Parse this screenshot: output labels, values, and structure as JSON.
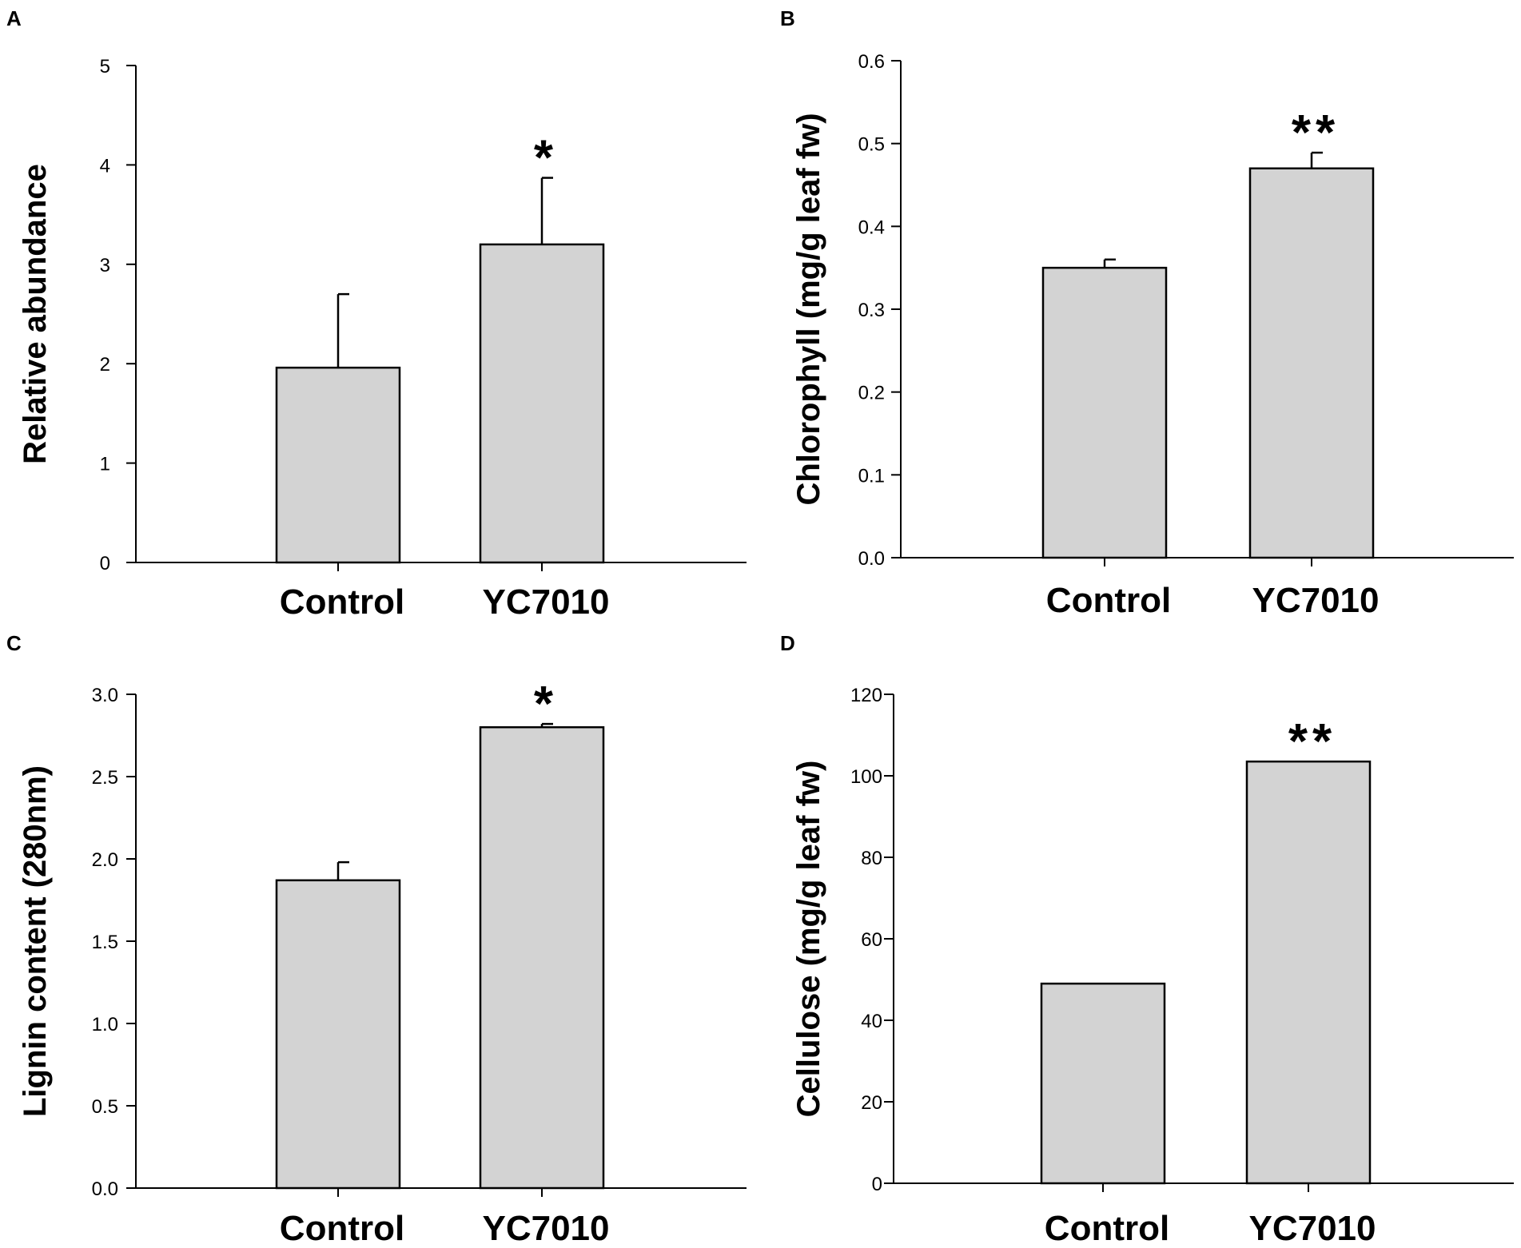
{
  "bar_color": "#d3d3d3",
  "axis_color": "#000000",
  "chart_data": [
    {
      "panel": "A",
      "type": "bar",
      "title": "",
      "xlabel": "",
      "ylabel": "Relative abundance",
      "categories": [
        "Control",
        "YC7010"
      ],
      "values": [
        1.96,
        3.2
      ],
      "errors": [
        0.74,
        0.67
      ],
      "ylim": [
        0,
        5
      ],
      "yticks": [
        "0",
        "1",
        "2",
        "3",
        "4",
        "5"
      ],
      "annotations": [
        "",
        "*"
      ]
    },
    {
      "panel": "B",
      "type": "bar",
      "title": "",
      "xlabel": "",
      "ylabel": "Chlorophyll (mg/g leaf fw)",
      "categories": [
        "Control",
        "YC7010"
      ],
      "values": [
        0.35,
        0.47
      ],
      "errors": [
        0.01,
        0.019
      ],
      "ylim": [
        0,
        0.6
      ],
      "yticks": [
        "0.0",
        "0.1",
        "0.2",
        "0.3",
        "0.4",
        "0.5",
        "0.6"
      ],
      "annotations": [
        "",
        "**"
      ]
    },
    {
      "panel": "C",
      "type": "bar",
      "title": "",
      "xlabel": "",
      "ylabel": "Lignin content (280nm)",
      "categories": [
        "Control",
        "YC7010"
      ],
      "values": [
        1.87,
        2.8
      ],
      "errors": [
        0.11,
        0.02
      ],
      "ylim": [
        0,
        3
      ],
      "yticks": [
        "0.0",
        "0.5",
        "1.0",
        "1.5",
        "2.0",
        "2.5",
        "3.0"
      ],
      "annotations": [
        "",
        "*"
      ]
    },
    {
      "panel": "D",
      "type": "bar",
      "title": "",
      "xlabel": "",
      "ylabel": "Cellulose (mg/g leaf fw)",
      "categories": [
        "Control",
        "YC7010"
      ],
      "values": [
        49,
        103.5
      ],
      "errors": [
        0,
        0
      ],
      "ylim": [
        0,
        120
      ],
      "yticks": [
        "0",
        "20",
        "40",
        "60",
        "80",
        "100",
        "120"
      ],
      "annotations": [
        "",
        "**"
      ]
    }
  ]
}
